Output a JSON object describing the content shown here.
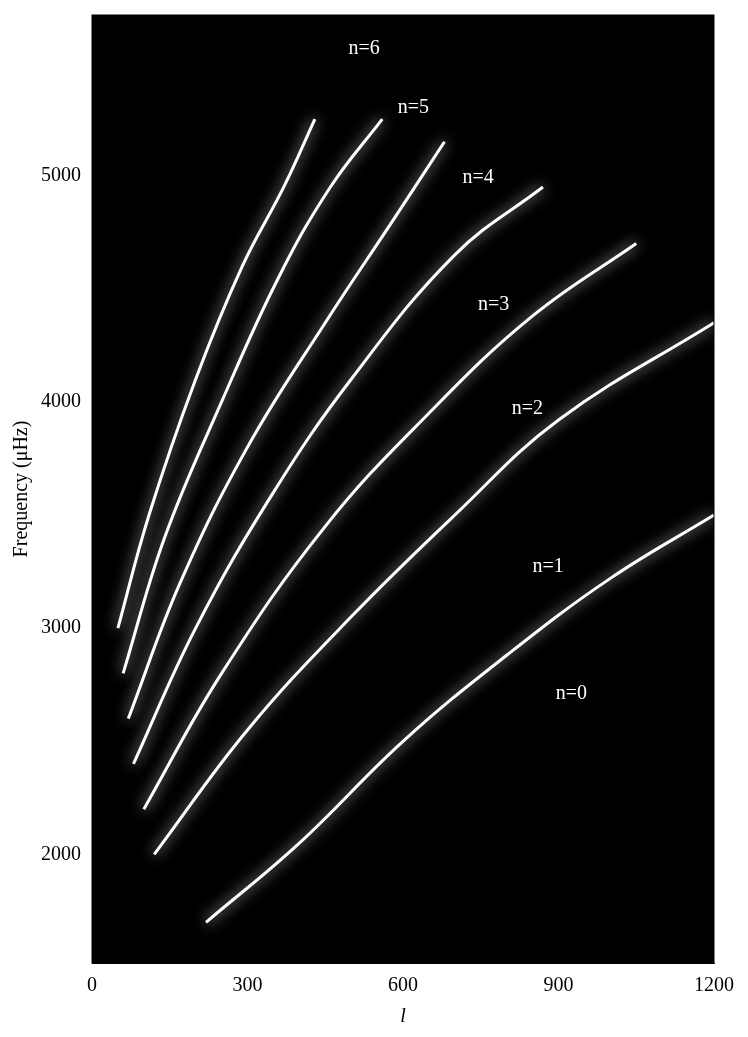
{
  "chart_data": {
    "type": "line",
    "x_label": "l",
    "y_label": "Frequency (μHz)",
    "xlim": [
      0,
      1200
    ],
    "xticks": [
      0,
      300,
      600,
      900,
      1200
    ],
    "ylim": [
      1520,
      5710
    ],
    "yticks": [
      2000,
      3000,
      4000,
      5000
    ],
    "grid": false,
    "series": [
      {
        "color": "#ffffff",
        "x": [
          220,
          400,
          600,
          800,
          1000,
          1200
        ],
        "values": [
          1700,
          2050,
          2500,
          2880,
          3220,
          3500
        ]
      },
      {
        "color": "#ffffff",
        "x": [
          120,
          300,
          500,
          700,
          900,
          1200
        ],
        "values": [
          2000,
          2550,
          3050,
          3500,
          3920,
          4350
        ]
      },
      {
        "color": "#ffffff",
        "x": [
          100,
          250,
          450,
          650,
          850,
          1050
        ],
        "values": [
          2200,
          2800,
          3450,
          3950,
          4380,
          4700
        ]
      },
      {
        "color": "#ffffff",
        "x": [
          80,
          200,
          350,
          500,
          700,
          870
        ],
        "values": [
          2400,
          3000,
          3600,
          4100,
          4650,
          4950
        ]
      },
      {
        "color": "#ffffff",
        "x": [
          70,
          170,
          300,
          450,
          580,
          680
        ],
        "values": [
          2600,
          3200,
          3800,
          4350,
          4800,
          5150
        ]
      },
      {
        "color": "#ffffff",
        "x": [
          60,
          140,
          250,
          360,
          460,
          560
        ],
        "values": [
          2800,
          3400,
          4000,
          4550,
          4950,
          5250
        ]
      },
      {
        "color": "#ffffff",
        "x": [
          50,
          110,
          200,
          290,
          370,
          430
        ],
        "values": [
          3000,
          3500,
          4100,
          4600,
          4950,
          5250
        ]
      }
    ],
    "annotations": [
      {
        "text": "n=0",
        "x": 925,
        "y": 2710
      },
      {
        "text": "n=1",
        "x": 880,
        "y": 3270
      },
      {
        "text": "n=2",
        "x": 840,
        "y": 3970
      },
      {
        "text": "n=3",
        "x": 775,
        "y": 4430
      },
      {
        "text": "n=4",
        "x": 745,
        "y": 4990
      },
      {
        "text": "n=5",
        "x": 620,
        "y": 5300
      },
      {
        "text": "n=6",
        "x": 525,
        "y": 5560
      }
    ]
  }
}
